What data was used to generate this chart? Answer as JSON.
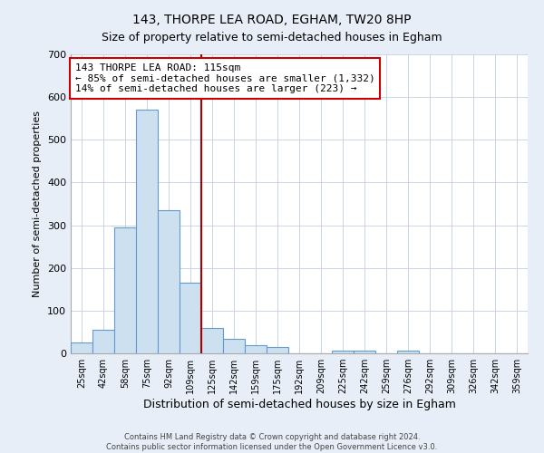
{
  "title": "143, THORPE LEA ROAD, EGHAM, TW20 8HP",
  "subtitle": "Size of property relative to semi-detached houses in Egham",
  "xlabel": "Distribution of semi-detached houses by size in Egham",
  "ylabel": "Number of semi-detached properties",
  "bar_labels": [
    "25sqm",
    "42sqm",
    "58sqm",
    "75sqm",
    "92sqm",
    "109sqm",
    "125sqm",
    "142sqm",
    "159sqm",
    "175sqm",
    "192sqm",
    "209sqm",
    "225sqm",
    "242sqm",
    "259sqm",
    "276sqm",
    "292sqm",
    "309sqm",
    "326sqm",
    "342sqm",
    "359sqm"
  ],
  "bar_values": [
    25,
    55,
    295,
    570,
    335,
    165,
    60,
    35,
    20,
    14,
    0,
    0,
    7,
    7,
    0,
    7,
    0,
    0,
    0,
    0,
    0
  ],
  "bar_color": "#cce0f0",
  "bar_edge_color": "#6699cc",
  "highlight_line_color": "#aa0000",
  "annotation_line1": "143 THORPE LEA ROAD: 115sqm",
  "annotation_line2": "← 85% of semi-detached houses are smaller (1,332)",
  "annotation_line3": "14% of semi-detached houses are larger (223) →",
  "annotation_box_color": "#ffffff",
  "annotation_box_edge_color": "#cc0000",
  "ylim": [
    0,
    700
  ],
  "yticks": [
    0,
    100,
    200,
    300,
    400,
    500,
    600,
    700
  ],
  "footer_line1": "Contains HM Land Registry data © Crown copyright and database right 2024.",
  "footer_line2": "Contains public sector information licensed under the Open Government Licence v3.0.",
  "background_color": "#e8eef8",
  "plot_bg_color": "#ffffff",
  "grid_color": "#c8d4e8"
}
